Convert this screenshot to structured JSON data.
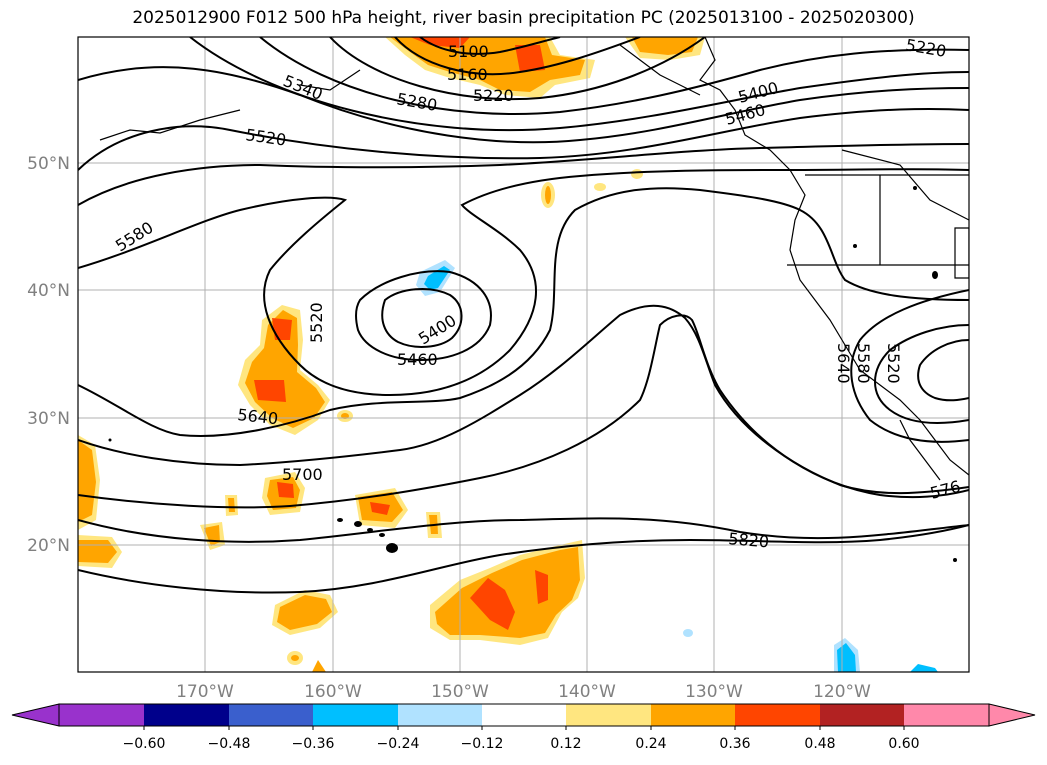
{
  "title": "2025012900 F012 500 hPa height, river basin precipitation PC (2025013100 - 2025020300)",
  "latitude_labels": [
    "50°N",
    "40°N",
    "30°N",
    "20°N"
  ],
  "longitude_labels": [
    "170°W",
    "160°W",
    "150°W",
    "140°W",
    "130°W",
    "120°W"
  ],
  "contour_labels": [
    "5100",
    "5160",
    "5220",
    "5220",
    "5280",
    "5340",
    "5400",
    "5460",
    "5520",
    "5580",
    "5520",
    "5400",
    "5460",
    "5640",
    "5700",
    "5820",
    "5640",
    "5580",
    "5520",
    "576"
  ],
  "colorbar": {
    "ticks": [
      "−0.60",
      "−0.48",
      "−0.36",
      "−0.24",
      "−0.12",
      "0.12",
      "0.24",
      "0.36",
      "0.48",
      "0.60"
    ],
    "colors": [
      "#9932cc",
      "#00008b",
      "#3a5fcd",
      "#00bfff",
      "#b0e2ff",
      "#ffffff",
      "#ffe680",
      "#ffa500",
      "#ff4500",
      "#b22222",
      "#ff88aa",
      "#ff88aa"
    ]
  },
  "field_colors": {
    "light_yellow": "#ffe680",
    "orange": "#ffa500",
    "red_orange": "#ff4500",
    "sky_blue": "#00bfff",
    "light_blue": "#b0e2ff"
  }
}
